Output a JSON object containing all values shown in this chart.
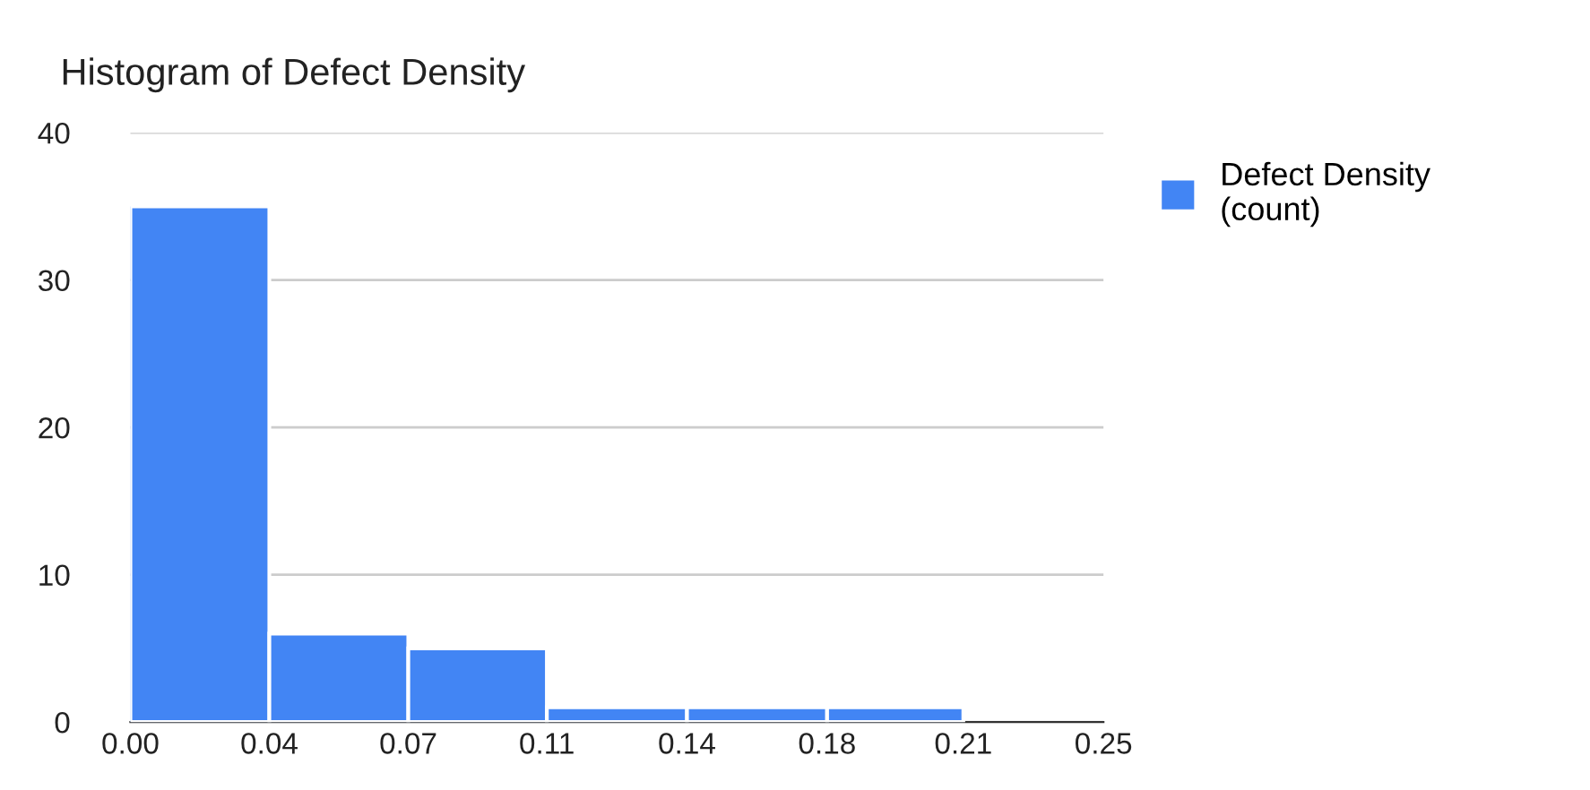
{
  "chart_data": {
    "type": "histogram",
    "title": "Histogram of Defect Density",
    "bins": [
      0,
      0.0357,
      0.0714,
      0.107,
      0.143,
      0.179,
      0.214
    ],
    "series": [
      {
        "name": "Defect Density\n(count)",
        "color": "#4285f4",
        "values": [
          35,
          6,
          5,
          1,
          1,
          1
        ]
      }
    ],
    "xlim": [
      0,
      0.25
    ],
    "xticks": [
      {
        "value": 0,
        "label": "0.00"
      },
      {
        "value": 0.0357,
        "label": "0.04"
      },
      {
        "value": 0.0714,
        "label": "0.07"
      },
      {
        "value": 0.107,
        "label": "0.11"
      },
      {
        "value": 0.143,
        "label": "0.14"
      },
      {
        "value": 0.179,
        "label": "0.18"
      },
      {
        "value": 0.214,
        "label": "0.21"
      },
      {
        "value": 0.25,
        "label": "0.25"
      }
    ],
    "ylim": [
      0,
      40
    ],
    "yticks": [
      0,
      10,
      20,
      30,
      40
    ],
    "grid": "y",
    "legend": "top right"
  }
}
